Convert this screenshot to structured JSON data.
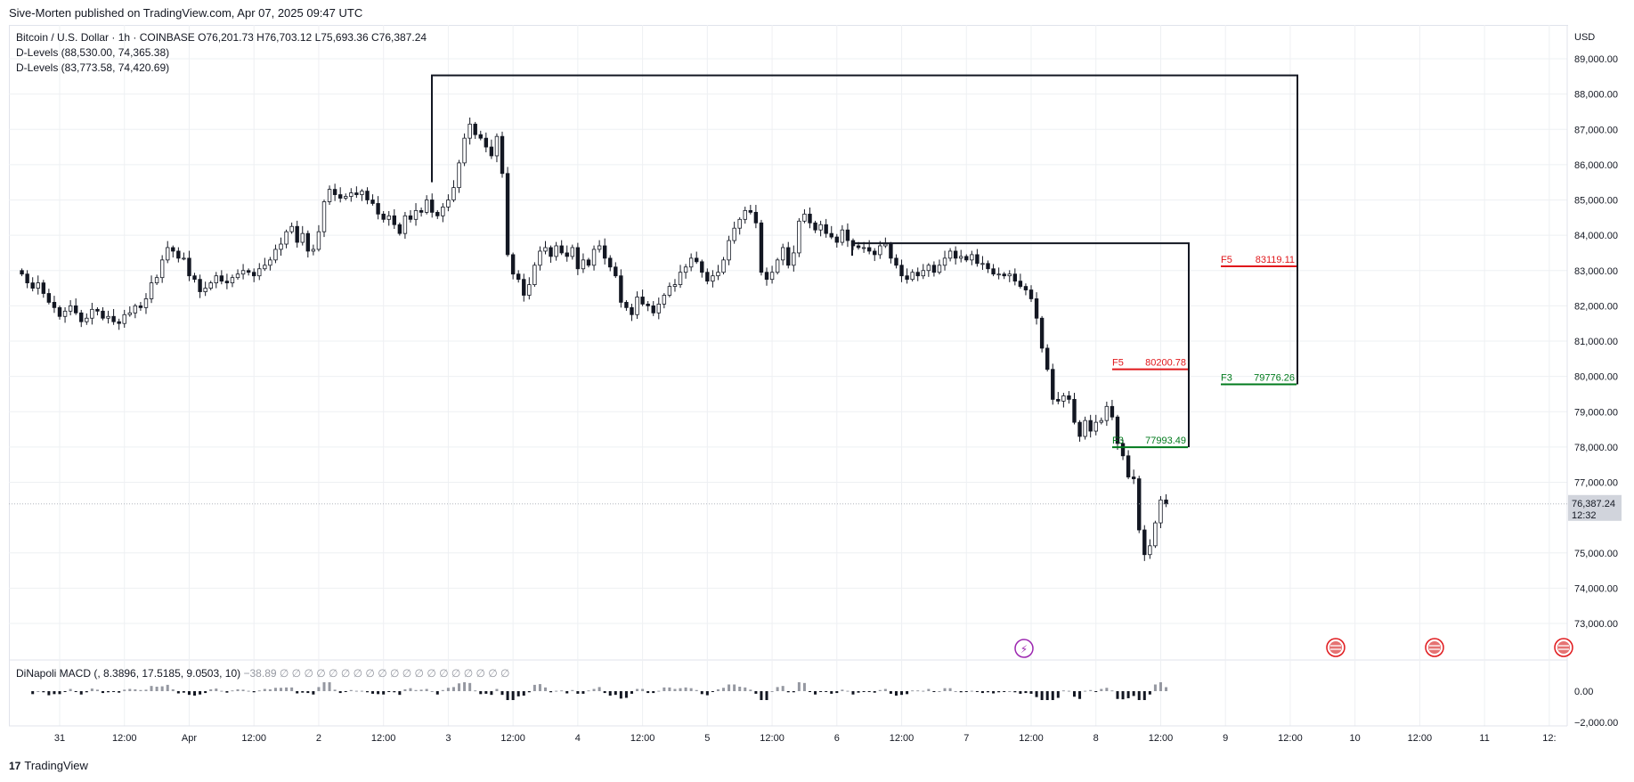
{
  "header": {
    "published": "Sive-Morten published on TradingView.com, Apr 07, 2025 09:47 UTC"
  },
  "legend": {
    "symbol": "Bitcoin / U.S. Dollar · 1h · COINBASE",
    "ohlc": {
      "o_label": "O",
      "o": "76,201.73",
      "h_label": "H",
      "h": "76,703.12",
      "l_label": "L",
      "l": "75,693.36",
      "c_label": "C",
      "c": "76,387.24"
    },
    "indicators": [
      "D-Levels (88,530.00, 74,365.38)",
      "D-Levels (83,773.58, 74,420.69)"
    ]
  },
  "currency": "USD",
  "price_tag": {
    "price": "76,387.24",
    "countdown": "12:32"
  },
  "macd": {
    "name": "DiNapoli MACD (, 8.3896, 17.5185, 9.0503, 10)",
    "value": "−38.89",
    "placeholders": "∅ ∅ ∅ ∅ ∅ ∅ ∅ ∅ ∅ ∅ ∅ ∅ ∅ ∅ ∅ ∅ ∅ ∅ ∅",
    "axis_labels": [
      "0.00",
      "−2,000.00"
    ]
  },
  "footer": {
    "logo_text": "TradingView"
  },
  "colors": {
    "up": "#131722",
    "down": "#131722",
    "fib_f5": "#e0171b",
    "fib_f3": "#007a1c",
    "grid": "#eef0f3"
  },
  "icons": [
    "lightning-icon",
    "us-flag-icon"
  ],
  "chart_data": {
    "type": "candlestick",
    "interval": "1h",
    "y_axis_labels": [
      "89,000.00",
      "88,000.00",
      "87,000.00",
      "86,000.00",
      "85,000.00",
      "84,000.00",
      "83,000.00",
      "82,000.00",
      "81,000.00",
      "80,000.00",
      "79,000.00",
      "78,000.00",
      "77,000.00",
      "75,000.00",
      "74,000.00",
      "73,000.00"
    ],
    "ylim": [
      72000,
      89500
    ],
    "x_axis_labels": [
      "31",
      "12:00",
      "Apr",
      "12:00",
      "2",
      "12:00",
      "3",
      "12:00",
      "4",
      "12:00",
      "5",
      "12:00",
      "6",
      "12:00",
      "7",
      "12:00",
      "8",
      "12:00",
      "9",
      "12:00",
      "10",
      "12:00",
      "11",
      "12:"
    ],
    "x_start": "2025-03-30T22:00",
    "x_end": "2025-04-11T12:00",
    "closes": [
      82900,
      82650,
      82500,
      82650,
      82350,
      82100,
      81950,
      81700,
      81850,
      82000,
      81800,
      81550,
      81650,
      81900,
      81850,
      81650,
      81700,
      81550,
      81500,
      81750,
      81800,
      82000,
      81950,
      82200,
      82650,
      82800,
      83300,
      83650,
      83550,
      83350,
      83350,
      82850,
      82750,
      82400,
      82500,
      82650,
      82850,
      82700,
      82650,
      82800,
      82900,
      83000,
      82950,
      82850,
      83050,
      83150,
      83300,
      83600,
      83750,
      84100,
      84250,
      83800,
      84050,
      83550,
      83600,
      84100,
      84950,
      85300,
      85150,
      85050,
      85100,
      85200,
      85150,
      85250,
      85000,
      84900,
      84600,
      84450,
      84550,
      84300,
      84050,
      84550,
      84450,
      84700,
      84650,
      85000,
      84650,
      84550,
      84800,
      85000,
      85350,
      86050,
      86750,
      87150,
      86850,
      86750,
      86500,
      86250,
      86800,
      85750,
      83450,
      82900,
      82750,
      82300,
      82600,
      83150,
      83550,
      83650,
      83400,
      83700,
      83500,
      83400,
      83650,
      83050,
      83300,
      83150,
      83600,
      83700,
      83350,
      83100,
      82850,
      82100,
      81950,
      81750,
      82250,
      82050,
      82000,
      81800,
      82050,
      82300,
      82550,
      82600,
      82950,
      83100,
      83350,
      83250,
      82950,
      82700,
      82850,
      82950,
      83300,
      83850,
      84200,
      84450,
      84700,
      84650,
      84350,
      82950,
      82750,
      82950,
      83300,
      83650,
      83150,
      83500,
      84400,
      84600,
      84350,
      84150,
      84300,
      84050,
      83950,
      83800,
      84150,
      83850,
      83700,
      83650,
      83650,
      83550,
      83450,
      83700,
      83750,
      83350,
      83150,
      82850,
      82750,
      82950,
      82850,
      83000,
      83150,
      82950,
      83150,
      83350,
      83550,
      83350,
      83400,
      83300,
      83450,
      83200,
      83200,
      83050,
      82900,
      82900,
      82850,
      82900,
      82700,
      82550,
      82450,
      82200,
      81650,
      80800,
      80200,
      79350,
      79300,
      79450,
      79350,
      78700,
      78300,
      78750,
      78450,
      78700,
      78750,
      79150,
      78850,
      78100,
      77750,
      77150,
      77100,
      75650,
      74950,
      75200,
      75850,
      76500,
      76387.24
    ]
  },
  "fib_levels": [
    {
      "label": "F5",
      "value": "80200.78",
      "color_key": "fib_f5",
      "price": 80200.78,
      "zone": "inner"
    },
    {
      "label": "F3",
      "value": "77993.49",
      "color_key": "fib_f3",
      "price": 77993.49,
      "zone": "inner"
    },
    {
      "label": "F5",
      "value": "83119.11",
      "color_key": "fib_f5",
      "price": 83119.11,
      "zone": "outer"
    },
    {
      "label": "F3",
      "value": "79776.26",
      "color_key": "fib_f3",
      "price": 79776.26,
      "zone": "outer"
    }
  ],
  "d_levels": [
    {
      "top": 88530.0,
      "bottom": 74365.38
    },
    {
      "top": 83773.58,
      "bottom": 74420.69
    }
  ]
}
